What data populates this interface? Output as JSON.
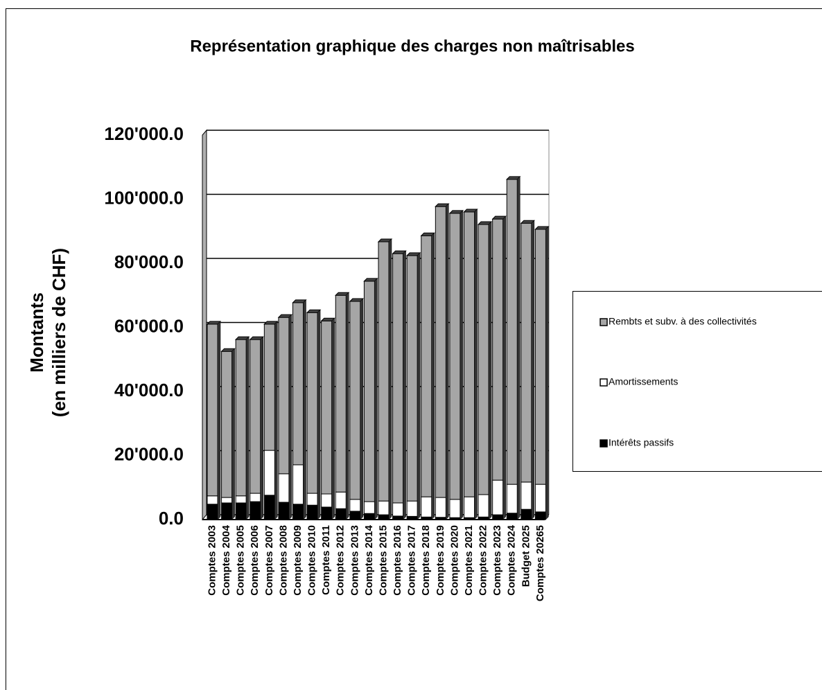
{
  "chart_data": {
    "type": "bar",
    "stacked": true,
    "title": "Représentation graphique des charges non maîtrisables",
    "ylabel": [
      "Montants",
      "(en milliers de CHF)"
    ],
    "categories": [
      "Comptes 2003",
      "Comptes 2004",
      "Comptes 2005",
      "Comptes 2006",
      "Comptes 2007",
      "Comptes 2008",
      "Comptes 2009",
      "Comptes 2010",
      "Comptes 2011",
      "Comptes 2012",
      "Comptes 2013",
      "Comptes 2014",
      "Comptes 2015",
      "Comptes 2016",
      "Comptes 2017",
      "Comptes 2018",
      "Comptes 2019",
      "Comptes 2020",
      "Comptes 2021",
      "Comptes 2022",
      "Comptes 2023",
      "Comptes 2024",
      "Budget 2025",
      "Comptes 20265"
    ],
    "series": [
      {
        "name": "Intérêts passifs",
        "color": "#000000",
        "values": [
          4800,
          5200,
          5200,
          5600,
          7600,
          5400,
          4800,
          4500,
          3900,
          3400,
          2600,
          1900,
          1500,
          1100,
          1000,
          800,
          700,
          600,
          600,
          800,
          1500,
          2000,
          3200,
          2400
        ]
      },
      {
        "name": "Amortissements",
        "color": "#ffffff",
        "values": [
          2600,
          1700,
          2200,
          2600,
          14000,
          8900,
          12300,
          3700,
          4100,
          5200,
          3700,
          3700,
          4300,
          4100,
          4800,
          6300,
          6200,
          5700,
          6500,
          7000,
          10800,
          9000,
          8500,
          8600
        ]
      },
      {
        "name": "Rembts et subv. à des collectivités",
        "color": "#a6a6a6",
        "values": [
          53600,
          45600,
          48800,
          48000,
          39400,
          48800,
          50600,
          56400,
          54000,
          61400,
          61800,
          68800,
          80900,
          77800,
          76600,
          81500,
          90800,
          89300,
          88900,
          84300,
          81500,
          95200,
          80800,
          79600
        ]
      }
    ],
    "ylim": [
      0,
      120000
    ],
    "yticks": [
      {
        "value": 0,
        "label": "0.0"
      },
      {
        "value": 20000,
        "label": "20'000.0"
      },
      {
        "value": 40000,
        "label": "40'000.0"
      },
      {
        "value": 60000,
        "label": "60'000.0"
      },
      {
        "value": 80000,
        "label": "80'000.0"
      },
      {
        "value": 100000,
        "label": "100'000.0"
      },
      {
        "value": 120000,
        "label": "120'000.0"
      }
    ],
    "grid": true,
    "legend": "right"
  }
}
